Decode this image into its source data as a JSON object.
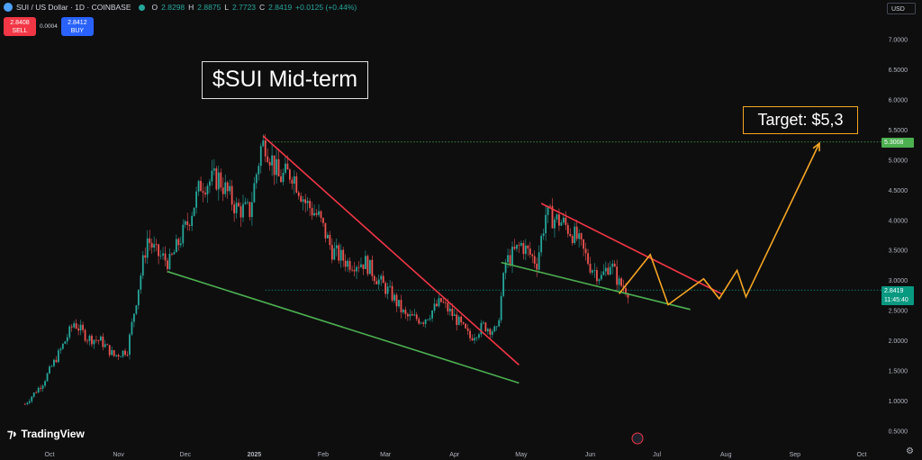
{
  "header": {
    "symbol": "SUI / US Dollar · 1D · COINBASE",
    "open_label": "O",
    "open": "2.8298",
    "high_label": "H",
    "high": "2.8875",
    "low_label": "L",
    "low": "2.7723",
    "close_label": "C",
    "close": "2.8419",
    "change": "+0.0125 (+0.44%)"
  },
  "trade": {
    "sell_price": "2.8408",
    "sell_label": "SELL",
    "spread": "0.0004",
    "buy_price": "2.8412",
    "buy_label": "BUY"
  },
  "currency": "USD",
  "annotations": {
    "title": "$SUI Mid-term",
    "target": "Target: $5,3"
  },
  "price_labels": {
    "target_level": "5.3008",
    "last_price": "2.8419",
    "countdown": "11:45:40"
  },
  "branding": {
    "name": "TradingView"
  },
  "chart_data": {
    "type": "candlestick",
    "title": "$SUI Mid-term",
    "y_ticks": [
      "0.5000",
      "1.0000",
      "1.5000",
      "2.0000",
      "2.5000",
      "3.0000",
      "3.5000",
      "4.0000",
      "4.5000",
      "5.0000",
      "5.5000",
      "6.0000",
      "6.5000",
      "7.0000"
    ],
    "x_ticks": [
      "Oct",
      "Nov",
      "Dec",
      "2025",
      "Feb",
      "Mar",
      "Apr",
      "May",
      "Jun",
      "Jul",
      "Aug",
      "Sep",
      "Oct"
    ],
    "ylim": [
      0.5,
      7.0
    ],
    "series": [
      {
        "type": "candles_approx",
        "points": [
          [
            "2024-09-20",
            0.95
          ],
          [
            "2024-09-28",
            1.3
          ],
          [
            "2024-10-06",
            1.85
          ],
          [
            "2024-10-12",
            2.3
          ],
          [
            "2024-10-18",
            2.05
          ],
          [
            "2024-10-24",
            2.0
          ],
          [
            "2024-10-30",
            1.75
          ],
          [
            "2024-11-05",
            1.85
          ],
          [
            "2024-11-10",
            2.9
          ],
          [
            "2024-11-14",
            3.7
          ],
          [
            "2024-11-18",
            3.45
          ],
          [
            "2024-11-24",
            3.3
          ],
          [
            "2024-12-02",
            3.95
          ],
          [
            "2024-12-08",
            4.6
          ],
          [
            "2024-12-16",
            4.7
          ],
          [
            "2024-12-24",
            4.2
          ],
          [
            "2024-12-30",
            4.15
          ],
          [
            "2025-01-04",
            5.2
          ],
          [
            "2025-01-06",
            5.3
          ],
          [
            "2025-01-12",
            4.7
          ],
          [
            "2025-01-18",
            4.8
          ],
          [
            "2025-01-24",
            4.3
          ],
          [
            "2025-01-30",
            4.05
          ],
          [
            "2025-02-05",
            3.5
          ],
          [
            "2025-02-12",
            3.3
          ],
          [
            "2025-02-20",
            3.3
          ],
          [
            "2025-02-26",
            3.0
          ],
          [
            "2025-03-04",
            2.75
          ],
          [
            "2025-03-10",
            2.4
          ],
          [
            "2025-03-18",
            2.35
          ],
          [
            "2025-03-26",
            2.65
          ],
          [
            "2025-04-02",
            2.35
          ],
          [
            "2025-04-08",
            2.05
          ],
          [
            "2025-04-14",
            2.25
          ],
          [
            "2025-04-20",
            2.15
          ],
          [
            "2025-04-24",
            3.3
          ],
          [
            "2025-05-01",
            3.6
          ],
          [
            "2025-05-08",
            3.3
          ],
          [
            "2025-05-12",
            4.1
          ],
          [
            "2025-05-20",
            3.95
          ],
          [
            "2025-05-26",
            3.7
          ],
          [
            "2025-06-01",
            3.25
          ],
          [
            "2025-06-06",
            3.05
          ],
          [
            "2025-06-10",
            3.3
          ],
          [
            "2025-06-14",
            2.95
          ],
          [
            "2025-06-18",
            2.84
          ]
        ]
      },
      {
        "name": "",
        "type": "trendline",
        "color": "#f23645",
        "points": [
          [
            "2025-01-05",
            5.4
          ],
          [
            "2025-04-30",
            1.6
          ]
        ]
      },
      {
        "name": "",
        "type": "trendline",
        "color": "#4caf50",
        "points": [
          [
            "2024-11-23",
            3.15
          ],
          [
            "2025-04-30",
            1.3
          ]
        ]
      },
      {
        "name": "",
        "type": "trendline",
        "color": "#f23645",
        "points": [
          [
            "2025-05-10",
            4.28
          ],
          [
            "2025-07-30",
            2.78
          ]
        ]
      },
      {
        "name": "",
        "type": "trendline",
        "color": "#4caf50",
        "points": [
          [
            "2025-04-22",
            3.3
          ],
          [
            "2025-07-16",
            2.52
          ]
        ]
      },
      {
        "name": "",
        "type": "projection",
        "color": "#f5a623",
        "points": [
          [
            "2025-06-14",
            2.78
          ],
          [
            "2025-06-28",
            3.43
          ],
          [
            "2025-07-06",
            2.6
          ],
          [
            "2025-07-22",
            3.03
          ],
          [
            "2025-07-29",
            2.7
          ],
          [
            "2025-08-06",
            3.17
          ],
          [
            "2025-08-10",
            2.73
          ],
          [
            "2025-09-12",
            5.28
          ]
        ]
      }
    ],
    "hlines": [
      {
        "value": 5.3008,
        "color": "#4caf50",
        "style": "dotted"
      },
      {
        "value": 2.8419,
        "color": "#089981",
        "style": "dotted"
      }
    ]
  }
}
